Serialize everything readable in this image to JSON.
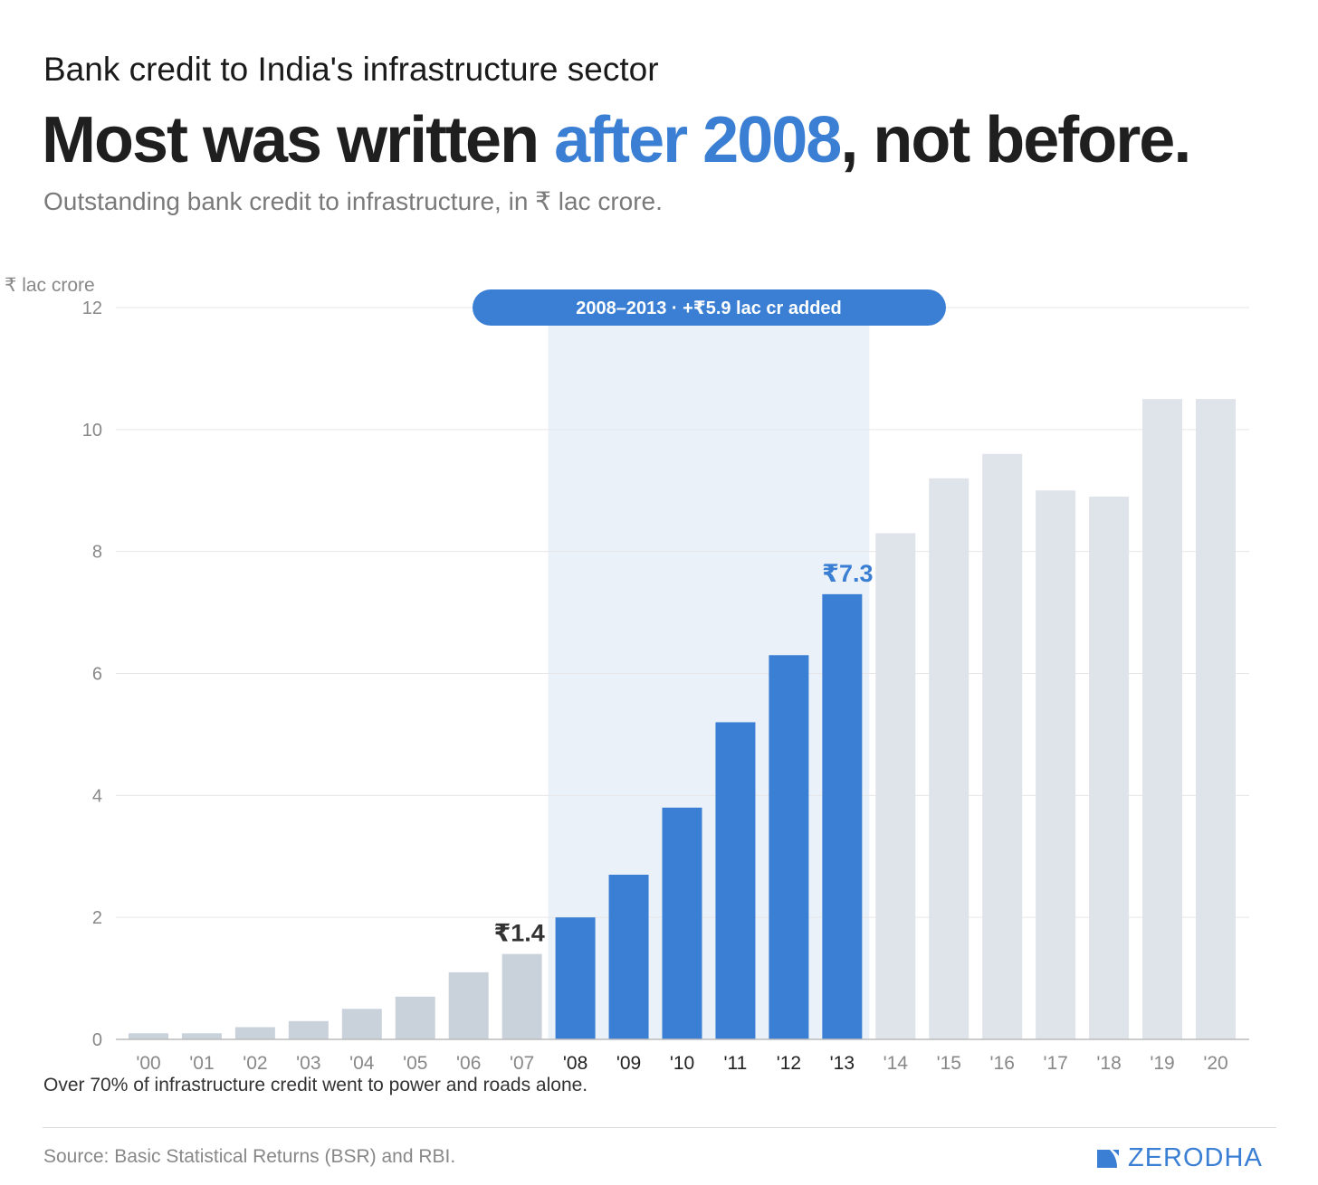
{
  "header": {
    "kicker": "Bank credit to India's infrastructure sector",
    "headline_pre": "Most was written ",
    "headline_highlight": "after 2008",
    "headline_post": ", not before.",
    "subtitle": "Outstanding bank credit to infrastructure, in ₹ lac crore."
  },
  "footer": {
    "note": "Over 70% of infrastructure credit went to power and roads alone.",
    "source": "Source: Basic Statistical Returns (BSR) and RBI.",
    "logo": "ZERODHA"
  },
  "colors": {
    "accent": "#3a7fd3",
    "pre": "#c9d2db",
    "post": "#dfe3ea",
    "band": "#eaf1f9",
    "text": "#1f1f1f"
  },
  "chart_data": {
    "type": "bar",
    "ylabel": "₹ lac crore",
    "ylim": [
      0,
      12
    ],
    "yticks": [
      0,
      2,
      4,
      6,
      8,
      10,
      12
    ],
    "grid": true,
    "categories": [
      "'00",
      "'01",
      "'02",
      "'03",
      "'04",
      "'05",
      "'06",
      "'07",
      "'08",
      "'09",
      "'10",
      "'11",
      "'12",
      "'13",
      "'14",
      "'15",
      "'16",
      "'17",
      "'18",
      "'19",
      "'20"
    ],
    "values": [
      0.1,
      0.1,
      0.2,
      0.3,
      0.5,
      0.7,
      1.1,
      1.4,
      2.0,
      2.7,
      3.8,
      5.2,
      6.3,
      7.3,
      8.3,
      9.2,
      9.6,
      9.0,
      8.9,
      10.5,
      10.5
    ],
    "highlight_range": [
      "'08",
      "'13"
    ],
    "highlight_label": "2008–2013 · +₹5.9 lac cr added",
    "annotations": [
      {
        "category": "'07",
        "text": "₹1.4"
      },
      {
        "category": "'13",
        "text": "₹7.3"
      }
    ]
  }
}
